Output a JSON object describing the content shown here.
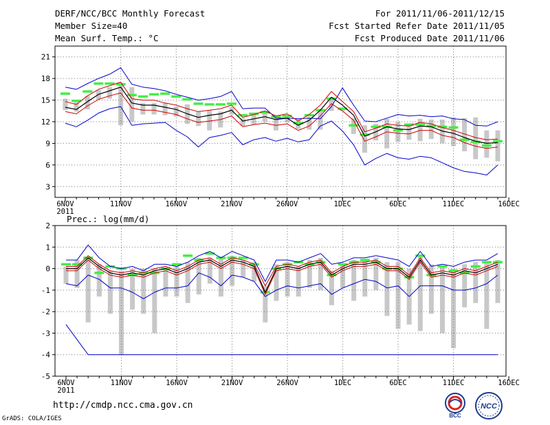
{
  "header": {
    "title": "DERF/NCC/BCC Monthly Forecast",
    "member_size": "Member Size=40",
    "variable1": "Mean Surf. Temp.: °C",
    "period": "For 2011/11/06-2011/12/15",
    "start_date": "Fcst Started Refer Date 2011/11/05",
    "produced_date": "Fcst Produced Date 2011/11/06"
  },
  "footer": {
    "url": "http://cmdp.ncc.cma.gov.cn",
    "credit": "GrADS: COLA/IGES",
    "logo_left": "BCC",
    "logo_right": "NCC"
  },
  "colors": {
    "ensemble_max_min": "#0000cc",
    "ensemble_mean": "#000000",
    "ensemble_spread": "#cc0000",
    "climatology": "#44ee44",
    "member_range": "#c8c8c8",
    "grid": "#777777"
  },
  "chart_data": [
    {
      "type": "line",
      "title": "Mean Surf. Temp.: °C",
      "x_tick_labels": [
        "6NOV",
        "11NOV",
        "16NOV",
        "21NOV",
        "26NOV",
        "1DEC",
        "6DEC",
        "11DEC",
        "16DEC"
      ],
      "x_year_label": "2011",
      "x_days": 40,
      "ylim": [
        1.5,
        22.5
      ],
      "yticks": [
        3,
        6,
        9,
        12,
        15,
        18,
        21
      ],
      "series": [
        {
          "name": "max",
          "values": [
            16.8,
            16.5,
            17.3,
            18,
            18.6,
            19.5,
            17.2,
            16.8,
            16.6,
            16.3,
            15.8,
            15.4,
            15,
            15.2,
            15.5,
            16.2,
            13.8,
            13.9,
            13.9,
            12.5,
            12.5,
            12.4,
            12.5,
            12.4,
            14.1,
            16.7,
            14.3,
            12.1,
            12,
            12.5,
            13,
            12.8,
            12.9,
            12.7,
            12.8,
            12.4,
            12.3,
            11.5,
            11.4,
            12
          ]
        },
        {
          "name": "mean_upper",
          "values": [
            14.8,
            14.4,
            15.6,
            16.5,
            17,
            17.5,
            15.2,
            15,
            15,
            14.6,
            14.3,
            13.8,
            13.4,
            13.6,
            13.8,
            14.3,
            12.6,
            13,
            13.5,
            12.8,
            13.1,
            12.1,
            13,
            14.3,
            16.2,
            14.8,
            13.4,
            10.6,
            11.1,
            11.7,
            11.5,
            11.4,
            11.9,
            11.7,
            11.2,
            10.8,
            10.3,
            9.8,
            9.5,
            9.6
          ]
        },
        {
          "name": "mean",
          "values": [
            14,
            13.7,
            14.8,
            15.8,
            16.3,
            16.8,
            14.6,
            14.3,
            14.3,
            14,
            13.7,
            13.1,
            12.6,
            12.9,
            13.1,
            13.6,
            12.1,
            12.4,
            12.7,
            12.3,
            12.5,
            11.5,
            12.2,
            13.6,
            15.4,
            14.3,
            12.9,
            10,
            10.6,
            11.3,
            11,
            10.9,
            11.4,
            11.3,
            10.7,
            10.4,
            9.8,
            9.3,
            9,
            9.1
          ]
        },
        {
          "name": "mean_lower",
          "values": [
            13.4,
            13.1,
            14.2,
            15.1,
            15.6,
            16,
            13.9,
            13.6,
            13.6,
            13.3,
            13,
            12.4,
            11.9,
            12.1,
            12.3,
            12.8,
            11.3,
            11.6,
            11.8,
            11.5,
            11.7,
            10.8,
            11.4,
            12.8,
            14.5,
            13.5,
            12.2,
            9.3,
            9.9,
            10.6,
            10.4,
            10.3,
            10.8,
            10.8,
            10.1,
            9.8,
            9.1,
            8.6,
            8.3,
            8.5
          ]
        },
        {
          "name": "min",
          "values": [
            11.8,
            11.3,
            12.2,
            13.2,
            13.8,
            14.1,
            11.5,
            11.7,
            11.8,
            11.9,
            10.8,
            9.9,
            8.5,
            9.8,
            10.1,
            10.5,
            8.8,
            9.5,
            9.8,
            9.3,
            9.7,
            9.2,
            9.5,
            11.4,
            12.1,
            10.7,
            8.8,
            6,
            6.9,
            7.6,
            7,
            6.8,
            7.2,
            7,
            6.3,
            5.6,
            5.1,
            4.9,
            4.6,
            6
          ]
        },
        {
          "name": "climatology",
          "values": [
            15.9,
            14.9,
            16.2,
            17.3,
            17.3,
            17.2,
            15.7,
            15.5,
            15.8,
            15.9,
            15.5,
            15.1,
            14.5,
            14.4,
            14.4,
            14.5,
            12.9,
            13.1,
            13.3,
            12.7,
            12.8,
            11.8,
            12.9,
            13.6,
            15.2,
            13.8,
            11.5,
            10.2,
            11.3,
            11.3,
            10.8,
            11.6,
            11.6,
            11.4,
            11.3,
            11.2,
            9.5,
            9.2,
            8.7,
            9.3
          ]
        },
        {
          "name": "member_high",
          "values": [
            15.2,
            14.7,
            15.6,
            16.4,
            16.8,
            17.4,
            16.8,
            14.6,
            14.6,
            14.6,
            14.1,
            14.4,
            13.4,
            13.6,
            13.4,
            14,
            12.5,
            13.1,
            13.3,
            12.5,
            12.8,
            12.4,
            12.6,
            13.5,
            15.4,
            13.6,
            12.5,
            11.5,
            11.7,
            12.4,
            12,
            11.4,
            12.4,
            12.3,
            12.3,
            12.6,
            12.5,
            12.6,
            10.8,
            10.8
          ]
        },
        {
          "name": "member_low",
          "values": [
            13.6,
            13.4,
            13.7,
            15.1,
            15.2,
            11.5,
            12,
            13,
            13,
            12.9,
            12.7,
            11.7,
            11.4,
            10.8,
            11.2,
            13,
            11.4,
            11.6,
            12,
            10.8,
            11.9,
            11,
            10.9,
            10.9,
            13.5,
            13.5,
            10.3,
            7.7,
            9.4,
            8.3,
            9.2,
            9.5,
            9.3,
            9.6,
            9,
            8.6,
            7.9,
            6.8,
            7,
            6.5
          ]
        }
      ]
    },
    {
      "type": "line",
      "title": "Prec.: log(mm/d)",
      "x_tick_labels": [
        "6NOV",
        "11NOV",
        "16NOV",
        "21NOV",
        "26NOV",
        "1DEC",
        "6DEC",
        "11DEC",
        "16DEC"
      ],
      "x_year_label": "2011",
      "x_days": 40,
      "ylim": [
        -5,
        2
      ],
      "yticks": [
        -5,
        -4,
        -3,
        -2,
        -1,
        0,
        1,
        2
      ],
      "series": [
        {
          "name": "max",
          "values": [
            0.4,
            0.4,
            1.1,
            0.5,
            0.1,
            0,
            0.1,
            -0.1,
            0.2,
            0.2,
            0.1,
            0.3,
            0.6,
            0.8,
            0.5,
            0.8,
            0.6,
            0.4,
            -0.6,
            0.4,
            0.4,
            0.3,
            0.5,
            0.7,
            0.2,
            0.3,
            0.5,
            0.5,
            0.6,
            0.5,
            0.4,
            0.1,
            0.8,
            0.1,
            0.2,
            0.1,
            0.3,
            0.4,
            0.4,
            0.7
          ]
        },
        {
          "name": "mean_upper",
          "values": [
            0.1,
            0.1,
            0.6,
            0.2,
            -0.1,
            -0.2,
            -0.1,
            -0.2,
            0,
            0.1,
            -0.1,
            0.1,
            0.4,
            0.5,
            0.2,
            0.5,
            0.4,
            0.2,
            -0.8,
            0.1,
            0.2,
            0.1,
            0.3,
            0.4,
            -0.2,
            0.1,
            0.3,
            0.3,
            0.4,
            0.1,
            0.1,
            -0.3,
            0.5,
            -0.2,
            -0.1,
            -0.2,
            0,
            -0.1,
            0.1,
            0.3
          ]
        },
        {
          "name": "mean",
          "values": [
            0,
            0,
            0.5,
            0.1,
            -0.2,
            -0.3,
            -0.2,
            -0.3,
            -0.1,
            0,
            -0.2,
            0,
            0.3,
            0.4,
            0.1,
            0.4,
            0.3,
            0.1,
            -1.1,
            0,
            0.1,
            0,
            0.2,
            0.3,
            -0.3,
            0,
            0.2,
            0.2,
            0.3,
            0,
            0,
            -0.4,
            0.4,
            -0.3,
            -0.2,
            -0.3,
            -0.1,
            -0.2,
            0,
            0.2
          ]
        },
        {
          "name": "mean_lower",
          "values": [
            -0.1,
            -0.1,
            0.4,
            0,
            -0.3,
            -0.4,
            -0.3,
            -0.4,
            -0.2,
            -0.1,
            -0.3,
            -0.1,
            0.2,
            0.3,
            0,
            0.3,
            0.2,
            0,
            -1.2,
            -0.1,
            0,
            -0.1,
            0.1,
            0.2,
            -0.4,
            -0.1,
            0.1,
            0.1,
            0.2,
            -0.1,
            -0.1,
            -0.5,
            0.3,
            -0.4,
            -0.3,
            -0.4,
            -0.2,
            -0.3,
            -0.1,
            0.1
          ]
        },
        {
          "name": "min",
          "values": [
            -0.7,
            -0.8,
            -0.3,
            -0.5,
            -0.9,
            -0.9,
            -1.1,
            -1.4,
            -1.1,
            -0.9,
            -0.9,
            -0.8,
            -0.2,
            -0.4,
            -0.8,
            -0.3,
            -0.4,
            -0.6,
            -1.3,
            -1,
            -0.8,
            -0.9,
            -0.8,
            -0.7,
            -1.2,
            -0.9,
            -0.7,
            -0.5,
            -0.6,
            -0.9,
            -0.8,
            -1.3,
            -0.8,
            -0.8,
            -0.8,
            -1,
            -1,
            -0.9,
            -0.7,
            -0.3
          ]
        },
        {
          "name": "climatology",
          "values": [
            0.2,
            0.2,
            0.5,
            -0.2,
            0.1,
            0,
            -0.3,
            -0.2,
            -0.2,
            0,
            0.2,
            0.6,
            0.4,
            0.7,
            0.5,
            0.5,
            0.5,
            0.2,
            -1.1,
            0,
            0.2,
            0.3,
            0.2,
            0.3,
            -0.3,
            0.2,
            0.3,
            0.4,
            0.3,
            0,
            0,
            -0.4,
            0.6,
            -0.3,
            0.1,
            -0.1,
            -0.2,
            0.1,
            0.3,
            0.3
          ]
        },
        {
          "name": "member_high",
          "values": [
            0.1,
            0.4,
            0.5,
            0.2,
            -0.1,
            -0.1,
            0,
            0,
            0,
            0,
            0.1,
            0.3,
            0.5,
            0.5,
            0.5,
            0.6,
            0.4,
            0.3,
            -0.8,
            0.2,
            0.3,
            0.1,
            0.4,
            0.5,
            -0.1,
            0.2,
            0.4,
            0.4,
            0.5,
            0.3,
            0.3,
            0,
            0.6,
            0.2,
            0.1,
            0,
            0.2,
            0.3,
            0.3,
            0.4
          ]
        },
        {
          "name": "member_low",
          "values": [
            -0.7,
            -0.9,
            -2.5,
            -1.3,
            -2.1,
            -4,
            -1.9,
            -2.1,
            -3,
            -1.3,
            -1.3,
            -1.6,
            -1.2,
            -0.7,
            -1.3,
            -0.8,
            -0.4,
            -0.6,
            -2.5,
            -1.5,
            -1.3,
            -1.3,
            -0.9,
            -1,
            -1.7,
            -0.9,
            -1.5,
            -1.3,
            -1,
            -2.2,
            -2.8,
            -2.6,
            -2.9,
            -2.1,
            -3,
            -3.7,
            -1.8,
            -1.6,
            -2.8,
            -1.6
          ]
        },
        {
          "name": "absolute_min",
          "values": [
            -2.6,
            -3.3,
            -4,
            -4,
            -4,
            -4,
            -4,
            -4,
            -4,
            -4,
            -4,
            -4,
            -4,
            -4,
            -4,
            -4,
            -4,
            -4,
            -4,
            -4,
            -4,
            -4,
            -4,
            -4,
            -4,
            -4,
            -4,
            -4,
            -4,
            -4,
            -4,
            -4,
            -4,
            -4,
            -4,
            -4,
            -4,
            -4,
            -4,
            -4
          ]
        }
      ]
    }
  ]
}
